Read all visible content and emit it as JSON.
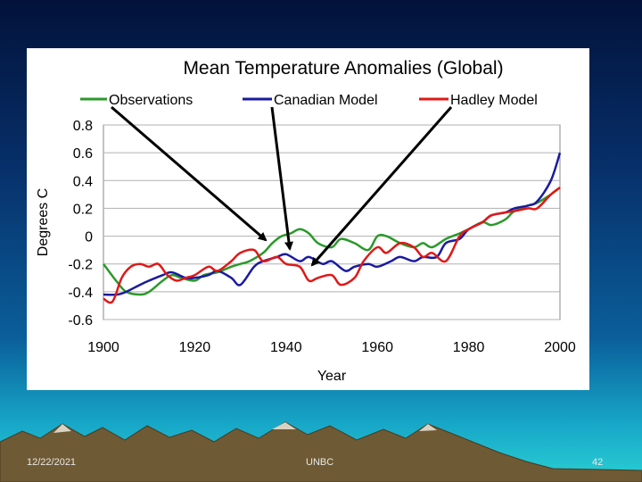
{
  "slide": {
    "date": "12/22/2021",
    "center": "UNBC",
    "page": "42"
  },
  "colors": {
    "observations": "#2a9a2a",
    "canadian": "#1a1aa0",
    "hadley": "#e01818"
  },
  "chart_data": {
    "type": "line",
    "title": "Mean Temperature Anomalies (Global)",
    "xlabel": "Year",
    "ylabel": "Degrees C",
    "xlim": [
      1900,
      2000
    ],
    "ylim": [
      -0.6,
      0.8
    ],
    "xticks": [
      "1900",
      "1920",
      "1940",
      "1960",
      "1980",
      "2000"
    ],
    "yticks": [
      "0.8",
      "0.6",
      "0.4",
      "0.2",
      "0",
      "-0.2",
      "-0.4",
      "-0.6"
    ],
    "grid": true,
    "legend_position": "top",
    "series": [
      {
        "name": "Observations",
        "x": [
          1900,
          1903,
          1905,
          1908,
          1910,
          1913,
          1915,
          1917,
          1920,
          1922,
          1925,
          1928,
          1930,
          1932,
          1935,
          1937,
          1939,
          1941,
          1943,
          1945,
          1947,
          1950,
          1952,
          1955,
          1958,
          1960,
          1962,
          1965,
          1968,
          1970,
          1972,
          1975,
          1978,
          1980,
          1983,
          1985,
          1988,
          1990,
          1993,
          1995,
          1998,
          2000
        ],
        "values": [
          -0.2,
          -0.33,
          -0.4,
          -0.42,
          -0.4,
          -0.32,
          -0.28,
          -0.3,
          -0.32,
          -0.28,
          -0.26,
          -0.22,
          -0.2,
          -0.18,
          -0.12,
          -0.05,
          0.0,
          0.02,
          0.05,
          0.02,
          -0.05,
          -0.08,
          -0.02,
          -0.05,
          -0.1,
          0.0,
          0.0,
          -0.05,
          -0.08,
          -0.05,
          -0.08,
          -0.02,
          0.02,
          0.05,
          0.1,
          0.08,
          0.12,
          0.18,
          0.22,
          0.24,
          0.3,
          0.35
        ]
      },
      {
        "name": "Canadian Model",
        "x": [
          1900,
          1903,
          1905,
          1908,
          1910,
          1913,
          1915,
          1918,
          1920,
          1923,
          1925,
          1928,
          1930,
          1933,
          1935,
          1938,
          1940,
          1943,
          1945,
          1948,
          1950,
          1953,
          1955,
          1958,
          1960,
          1963,
          1965,
          1968,
          1970,
          1973,
          1975,
          1978,
          1980,
          1983,
          1985,
          1988,
          1990,
          1993,
          1995,
          1998,
          2000
        ],
        "values": [
          -0.42,
          -0.42,
          -0.4,
          -0.35,
          -0.32,
          -0.28,
          -0.26,
          -0.3,
          -0.3,
          -0.28,
          -0.25,
          -0.3,
          -0.35,
          -0.22,
          -0.18,
          -0.15,
          -0.13,
          -0.18,
          -0.15,
          -0.2,
          -0.18,
          -0.25,
          -0.22,
          -0.2,
          -0.22,
          -0.18,
          -0.15,
          -0.18,
          -0.15,
          -0.15,
          -0.05,
          -0.02,
          0.05,
          0.1,
          0.15,
          0.17,
          0.2,
          0.22,
          0.25,
          0.4,
          0.6
        ]
      },
      {
        "name": "Hadley Model",
        "x": [
          1900,
          1902,
          1904,
          1906,
          1908,
          1910,
          1912,
          1914,
          1916,
          1918,
          1920,
          1923,
          1925,
          1928,
          1930,
          1933,
          1935,
          1938,
          1940,
          1943,
          1945,
          1947,
          1950,
          1952,
          1955,
          1957,
          1960,
          1962,
          1965,
          1968,
          1970,
          1972,
          1975,
          1978,
          1980,
          1983,
          1985,
          1988,
          1990,
          1993,
          1995,
          1998,
          2000
        ],
        "values": [
          -0.45,
          -0.47,
          -0.3,
          -0.22,
          -0.2,
          -0.22,
          -0.2,
          -0.28,
          -0.32,
          -0.3,
          -0.28,
          -0.22,
          -0.25,
          -0.18,
          -0.12,
          -0.1,
          -0.18,
          -0.15,
          -0.2,
          -0.22,
          -0.32,
          -0.3,
          -0.28,
          -0.35,
          -0.3,
          -0.18,
          -0.08,
          -0.12,
          -0.05,
          -0.08,
          -0.15,
          -0.12,
          -0.18,
          0.0,
          0.05,
          0.1,
          0.15,
          0.17,
          0.18,
          0.2,
          0.2,
          0.3,
          0.35
        ]
      }
    ]
  }
}
